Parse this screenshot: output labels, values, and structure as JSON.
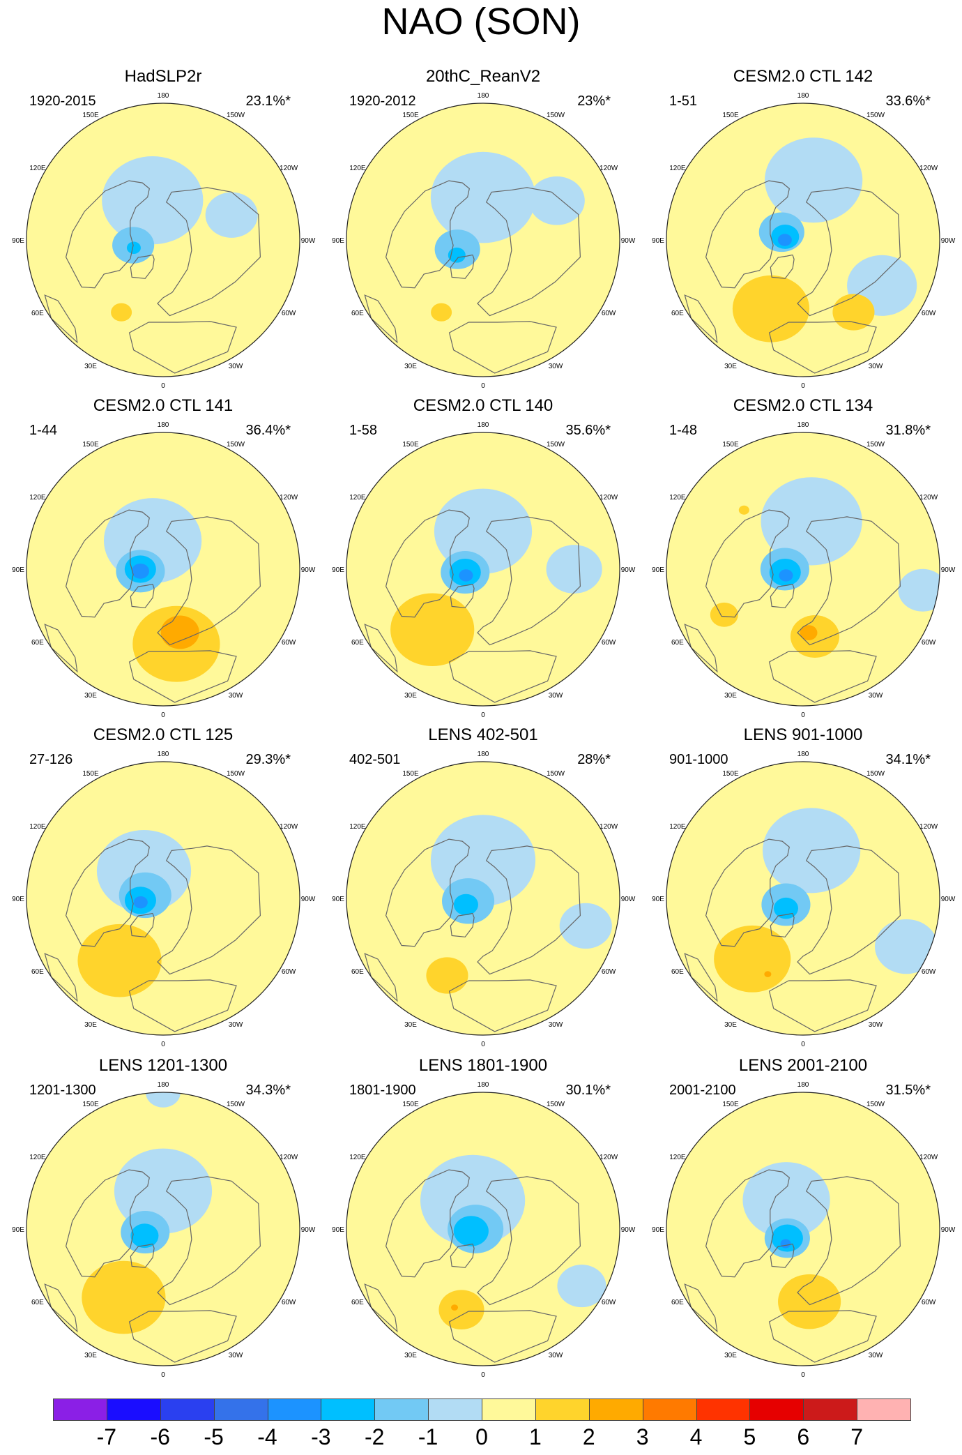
{
  "title": "NAO (SON)",
  "colors": {
    "land_outline": "#666666",
    "circle_outline": "#222222",
    "background_zero": "#fff99a"
  },
  "chart_data": {
    "type": "heatmap",
    "description_units": "NAO SLP regression pattern, polar stereographic maps",
    "longitude_labels": [
      "180",
      "150E",
      "120E",
      "90E",
      "60E",
      "30E",
      "0",
      "30W",
      "60W",
      "90W",
      "120W",
      "150W"
    ],
    "panels": [
      {
        "title": "HadSLP2r",
        "period": "1920-2015",
        "variance": "23.1%*",
        "features": [
          {
            "level": -1,
            "lon": 195,
            "colat": 27,
            "r": 29
          },
          {
            "level": -1,
            "lon": 110,
            "colat": 48,
            "r": 15
          },
          {
            "level": -2,
            "lon": 280,
            "colat": 20,
            "r": 12
          },
          {
            "level": -3,
            "lon": 285,
            "colat": 20,
            "r": 4
          },
          {
            "level": 1,
            "lon": 330,
            "colat": 55,
            "r": 6
          }
        ]
      },
      {
        "title": "20thC_ReanV2",
        "period": "1920-2012",
        "variance": "23%*",
        "features": [
          {
            "level": -1,
            "lon": 180,
            "colat": 28,
            "r": 30
          },
          {
            "level": -1,
            "lon": 118,
            "colat": 55,
            "r": 16
          },
          {
            "level": -2,
            "lon": 290,
            "colat": 18,
            "r": 13
          },
          {
            "level": -3,
            "lon": 300,
            "colat": 20,
            "r": 5
          },
          {
            "level": 1,
            "lon": 330,
            "colat": 55,
            "r": 6
          }
        ]
      },
      {
        "title": "CESM2.0 CTL 142",
        "period": "1-51",
        "variance": "33.6%*",
        "features": [
          {
            "level": -1,
            "lon": 170,
            "colat": 40,
            "r": 28
          },
          {
            "level": -1,
            "lon": 60,
            "colat": 60,
            "r": 20
          },
          {
            "level": -2,
            "lon": 250,
            "colat": 15,
            "r": 13
          },
          {
            "level": -3,
            "lon": 260,
            "colat": 12,
            "r": 8
          },
          {
            "level": -4,
            "lon": 270,
            "colat": 12,
            "r": 4
          },
          {
            "level": 1,
            "lon": 335,
            "colat": 50,
            "r": 22
          },
          {
            "level": 1,
            "lon": 35,
            "colat": 58,
            "r": 12
          }
        ]
      },
      {
        "title": "CESM2.0 CTL 141",
        "period": "1-44",
        "variance": "36.4%*",
        "features": [
          {
            "level": -1,
            "lon": 200,
            "colat": 20,
            "r": 28
          },
          {
            "level": -2,
            "lon": 275,
            "colat": 15,
            "r": 14
          },
          {
            "level": -3,
            "lon": 270,
            "colat": 15,
            "r": 9
          },
          {
            "level": -4,
            "lon": 275,
            "colat": 15,
            "r": 5
          },
          {
            "level": 1,
            "lon": 10,
            "colat": 50,
            "r": 25
          },
          {
            "level": 2,
            "lon": 15,
            "colat": 43,
            "r": 11
          }
        ]
      },
      {
        "title": "CESM2.0 CTL 140",
        "period": "1-58",
        "variance": "35.6%*",
        "features": [
          {
            "level": -1,
            "lon": 180,
            "colat": 25,
            "r": 28
          },
          {
            "level": -1,
            "lon": 90,
            "colat": 60,
            "r": 16
          },
          {
            "level": -2,
            "lon": 280,
            "colat": 12,
            "r": 14
          },
          {
            "level": -3,
            "lon": 280,
            "colat": 12,
            "r": 9
          },
          {
            "level": -4,
            "lon": 290,
            "colat": 12,
            "r": 4
          },
          {
            "level": 1,
            "lon": 320,
            "colat": 52,
            "r": 24
          }
        ]
      },
      {
        "title": "CESM2.0 CTL 134",
        "period": "1-48",
        "variance": "31.8%*",
        "features": [
          {
            "level": -1,
            "lon": 170,
            "colat": 32,
            "r": 29
          },
          {
            "level": -1,
            "lon": 80,
            "colat": 80,
            "r": 14
          },
          {
            "level": -2,
            "lon": 270,
            "colat": 12,
            "r": 14
          },
          {
            "level": -3,
            "lon": 280,
            "colat": 12,
            "r": 9
          },
          {
            "level": -4,
            "lon": 290,
            "colat": 12,
            "r": 4
          },
          {
            "level": 1,
            "lon": 10,
            "colat": 45,
            "r": 14
          },
          {
            "level": 2,
            "lon": 5,
            "colat": 42,
            "r": 5
          },
          {
            "level": 1,
            "lon": 300,
            "colat": 60,
            "r": 8
          },
          {
            "level": 1,
            "lon": 225,
            "colat": 55,
            "r": 3
          }
        ]
      },
      {
        "title": "CESM2.0 CTL 125",
        "period": "27-126",
        "variance": "29.3%*",
        "features": [
          {
            "level": -1,
            "lon": 215,
            "colat": 22,
            "r": 27
          },
          {
            "level": -2,
            "lon": 260,
            "colat": 12,
            "r": 15
          },
          {
            "level": -3,
            "lon": 275,
            "colat": 15,
            "r": 9
          },
          {
            "level": -4,
            "lon": 280,
            "colat": 15,
            "r": 4
          },
          {
            "level": 1,
            "lon": 325,
            "colat": 50,
            "r": 24
          }
        ]
      },
      {
        "title": "LENS 402-501",
        "period": "402-501",
        "variance": "28%*",
        "features": [
          {
            "level": -1,
            "lon": 180,
            "colat": 25,
            "r": 30
          },
          {
            "level": -1,
            "lon": 75,
            "colat": 70,
            "r": 15
          },
          {
            "level": -2,
            "lon": 280,
            "colat": 10,
            "r": 15
          },
          {
            "level": -3,
            "lon": 290,
            "colat": 12,
            "r": 7
          },
          {
            "level": 1,
            "lon": 335,
            "colat": 56,
            "r": 12
          }
        ]
      },
      {
        "title": "LENS 901-1000",
        "period": "901-1000",
        "variance": "34.1%*",
        "features": [
          {
            "level": -1,
            "lon": 170,
            "colat": 32,
            "r": 28
          },
          {
            "level": -1,
            "lon": 65,
            "colat": 75,
            "r": 18
          },
          {
            "level": -2,
            "lon": 290,
            "colat": 12,
            "r": 14
          },
          {
            "level": -3,
            "lon": 300,
            "colat": 13,
            "r": 7
          },
          {
            "level": 1,
            "lon": 320,
            "colat": 52,
            "r": 22
          },
          {
            "level": 2,
            "lon": 335,
            "colat": 55,
            "r": 2
          }
        ]
      },
      {
        "title": "LENS 1201-1300",
        "period": "1201-1300",
        "variance": "34.3%*",
        "features": [
          {
            "level": -1,
            "lon": 180,
            "colat": 25,
            "r": 28
          },
          {
            "level": -1,
            "lon": 180,
            "colat": 90,
            "r": 10
          },
          {
            "level": -2,
            "lon": 280,
            "colat": 12,
            "r": 14
          },
          {
            "level": -3,
            "lon": 290,
            "colat": 13,
            "r": 8
          },
          {
            "level": 1,
            "lon": 330,
            "colat": 52,
            "r": 24
          }
        ]
      },
      {
        "title": "LENS 1801-1900",
        "period": "1801-1900",
        "variance": "30.1%*",
        "features": [
          {
            "level": -1,
            "lon": 200,
            "colat": 20,
            "r": 30
          },
          {
            "level": -1,
            "lon": 60,
            "colat": 75,
            "r": 14
          },
          {
            "level": -2,
            "lon": 270,
            "colat": 5,
            "r": 16
          },
          {
            "level": -3,
            "lon": 280,
            "colat": 8,
            "r": 10
          },
          {
            "level": 1,
            "lon": 345,
            "colat": 55,
            "r": 13
          },
          {
            "level": 2,
            "lon": 340,
            "colat": 55,
            "r": 2
          }
        ]
      },
      {
        "title": "LENS 2001-2100",
        "period": "2001-2100",
        "variance": "31.5%*",
        "features": [
          {
            "level": -1,
            "lon": 210,
            "colat": 22,
            "r": 25
          },
          {
            "level": -2,
            "lon": 300,
            "colat": 12,
            "r": 13
          },
          {
            "level": -3,
            "lon": 300,
            "colat": 12,
            "r": 9
          },
          {
            "level": -4,
            "lon": 310,
            "colat": 15,
            "r": 3
          },
          {
            "level": 1,
            "lon": 5,
            "colat": 48,
            "r": 18
          }
        ]
      }
    ],
    "colorbar": {
      "labels": [
        "-7",
        "-6",
        "-5",
        "-4",
        "-3",
        "-2",
        "-1",
        "0",
        "1",
        "2",
        "3",
        "4",
        "5",
        "6",
        "7"
      ],
      "colors": [
        "#8b1fe6",
        "#1a0dff",
        "#2a40f0",
        "#3472ea",
        "#1c93ff",
        "#00bfff",
        "#72c9f4",
        "#b2dcf4",
        "#fff99a",
        "#ffd42c",
        "#ffaa00",
        "#ff7a00",
        "#ff3300",
        "#e60000",
        "#cc1a1a",
        "#ffb2b2"
      ],
      "level_colors": {
        "-4": "#1c93ff",
        "-3": "#00bfff",
        "-2": "#72c9f4",
        "-1": "#b2dcf4",
        "0": "#fff99a",
        "1": "#ffd42c",
        "2": "#ffaa00"
      }
    }
  }
}
